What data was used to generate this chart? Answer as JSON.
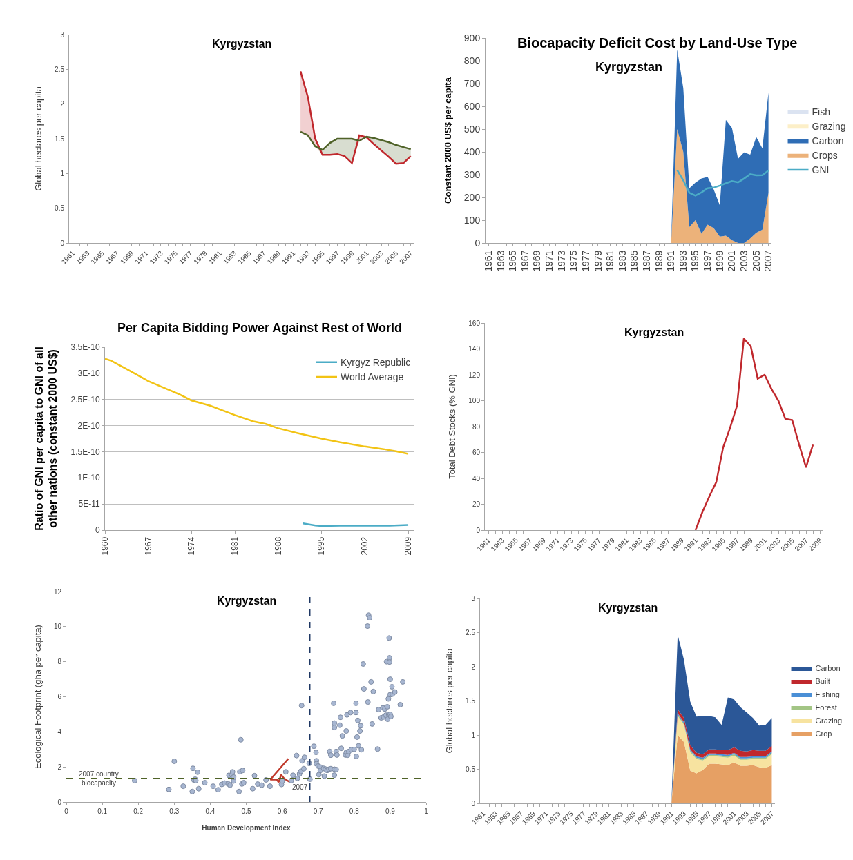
{
  "chart_data": [
    {
      "type": "line",
      "title": "Kyrgyzstan",
      "ylabel": "Global hectares per capita",
      "legend": false,
      "categories": [
        "1961",
        null,
        "1963",
        null,
        "1965",
        null,
        "1967",
        null,
        "1969",
        null,
        "1971",
        null,
        "1973",
        null,
        "1975",
        null,
        "1977",
        null,
        "1979",
        null,
        "1981",
        null,
        "1983",
        null,
        "1985",
        null,
        "1987",
        null,
        "1989",
        null,
        "1991",
        null,
        "1993",
        null,
        "1995",
        null,
        "1997",
        null,
        "1999",
        null,
        "2001",
        null,
        "2003",
        null,
        "2005",
        null,
        "2007"
      ],
      "ylim": [
        0,
        3
      ],
      "yticks": [
        0,
        0.5,
        1,
        1.5,
        2,
        2.5,
        3
      ],
      "series": [
        {
          "color": "#c0282d",
          "values": [
            null,
            null,
            null,
            null,
            null,
            null,
            null,
            null,
            null,
            null,
            null,
            null,
            null,
            null,
            null,
            null,
            null,
            null,
            null,
            null,
            null,
            null,
            null,
            null,
            null,
            null,
            null,
            null,
            null,
            null,
            null,
            2.47,
            2.1,
            1.5,
            1.27,
            1.27,
            1.28,
            1.25,
            1.15,
            1.55,
            1.52,
            1.42,
            1.33,
            1.24,
            1.14,
            1.15,
            1.25
          ],
          "lower": [
            null,
            null,
            null,
            null,
            null,
            null,
            null,
            null,
            null,
            null,
            null,
            null,
            null,
            null,
            null,
            null,
            null,
            null,
            null,
            null,
            null,
            null,
            null,
            null,
            null,
            null,
            null,
            null,
            null,
            null,
            null,
            1.6,
            1.55,
            1.39,
            1.27,
            1.27,
            1.28,
            1.25,
            1.15,
            1.47,
            1.52,
            1.42,
            1.33,
            1.24,
            1.14,
            1.15,
            1.25
          ],
          "upper": [
            null,
            null,
            null,
            null,
            null,
            null,
            null,
            null,
            null,
            null,
            null,
            null,
            null,
            null,
            null,
            null,
            null,
            null,
            null,
            null,
            null,
            null,
            null,
            null,
            null,
            null,
            null,
            null,
            null,
            null,
            null,
            2.47,
            2.1,
            1.5,
            1.27,
            1.27,
            1.28,
            1.25,
            1.15,
            1.55,
            1.52,
            1.42,
            1.33,
            1.24,
            1.14,
            1.15,
            1.25
          ]
        },
        {
          "color": "#4f6228",
          "values": [
            null,
            null,
            null,
            null,
            null,
            null,
            null,
            null,
            null,
            null,
            null,
            null,
            null,
            null,
            null,
            null,
            null,
            null,
            null,
            null,
            null,
            null,
            null,
            null,
            null,
            null,
            null,
            null,
            null,
            null,
            null,
            1.6,
            1.55,
            1.39,
            1.34,
            1.44,
            1.5,
            1.5,
            1.5,
            1.47,
            1.53,
            1.51,
            1.48,
            1.45,
            1.41,
            1.38,
            1.35
          ],
          "lower": [
            null,
            null,
            null,
            null,
            null,
            null,
            null,
            null,
            null,
            null,
            null,
            null,
            null,
            null,
            null,
            null,
            null,
            null,
            null,
            null,
            null,
            null,
            null,
            null,
            null,
            null,
            null,
            null,
            null,
            null,
            null,
            1.6,
            1.55,
            1.39,
            1.27,
            1.27,
            1.28,
            1.25,
            1.15,
            1.47,
            1.52,
            1.42,
            1.33,
            1.24,
            1.14,
            1.15,
            1.25
          ],
          "upper": [
            null,
            null,
            null,
            null,
            null,
            null,
            null,
            null,
            null,
            null,
            null,
            null,
            null,
            null,
            null,
            null,
            null,
            null,
            null,
            null,
            null,
            null,
            null,
            null,
            null,
            null,
            null,
            null,
            null,
            null,
            null,
            1.6,
            1.55,
            1.39,
            1.34,
            1.44,
            1.5,
            1.5,
            1.5,
            1.47,
            1.53,
            1.51,
            1.48,
            1.45,
            1.41,
            1.38,
            1.35
          ]
        }
      ]
    },
    {
      "type": "area",
      "stacked": true,
      "title": "Biocapacity Deficit Cost by Land-Use Type",
      "subtitle": "Kyrgyzstan",
      "ylabel": "Constant 2000 US$ per capita",
      "legend": "right",
      "categories": [
        "1961",
        null,
        "1963",
        null,
        "1965",
        null,
        "1967",
        null,
        "1969",
        null,
        "1971",
        null,
        "1973",
        null,
        "1975",
        null,
        "1977",
        null,
        "1979",
        null,
        "1981",
        null,
        "1983",
        null,
        "1985",
        null,
        "1987",
        null,
        "1989",
        null,
        "1991",
        null,
        "1993",
        null,
        "1995",
        null,
        "1997",
        null,
        "1999",
        null,
        "2001",
        null,
        "2003",
        null,
        "2005",
        null,
        "2007"
      ],
      "ylim": [
        0,
        900
      ],
      "yticks": [
        0,
        100,
        200,
        300,
        400,
        500,
        600,
        700,
        800,
        900
      ],
      "series": [
        {
          "name": "Crops",
          "color": "#ecb27a",
          "values": [
            null,
            null,
            null,
            null,
            null,
            null,
            null,
            null,
            null,
            null,
            null,
            null,
            null,
            null,
            null,
            null,
            null,
            null,
            null,
            null,
            null,
            null,
            null,
            null,
            null,
            null,
            null,
            null,
            null,
            null,
            0,
            500,
            400,
            70,
            100,
            40,
            80,
            65,
            28,
            32,
            12,
            0,
            0,
            20,
            45,
            58,
            220
          ]
        },
        {
          "name": "Carbon",
          "color": "#2f6db5",
          "values": [
            null,
            null,
            null,
            null,
            null,
            null,
            null,
            null,
            null,
            null,
            null,
            null,
            null,
            null,
            null,
            null,
            null,
            null,
            null,
            null,
            null,
            null,
            null,
            null,
            null,
            null,
            null,
            null,
            null,
            null,
            0,
            350,
            280,
            170,
            165,
            243,
            210,
            170,
            137,
            508,
            493,
            370,
            398,
            368,
            420,
            357,
            440
          ]
        },
        {
          "name": "Grazing",
          "color": "#fcefc8",
          "values": [
            null,
            null,
            null,
            null,
            null,
            null,
            null,
            null,
            null,
            null,
            null,
            null,
            null,
            null,
            null,
            null,
            null,
            null,
            null,
            null,
            null,
            null,
            null,
            null,
            null,
            null,
            null,
            null,
            null,
            null,
            null,
            null,
            null,
            null,
            null,
            null,
            null,
            null,
            null,
            null,
            null,
            null,
            null,
            null,
            null,
            null,
            null
          ]
        },
        {
          "name": "Fish",
          "color": "#dbe3f1",
          "values": [
            null,
            null,
            null,
            null,
            null,
            null,
            null,
            null,
            null,
            null,
            null,
            null,
            null,
            null,
            null,
            null,
            null,
            null,
            null,
            null,
            null,
            null,
            null,
            null,
            null,
            null,
            null,
            null,
            null,
            null,
            null,
            null,
            null,
            null,
            null,
            null,
            null,
            null,
            null,
            null,
            null,
            null,
            null,
            null,
            null,
            null,
            null
          ]
        },
        {
          "name": "GNI",
          "type": "line",
          "color": "#4bacc6",
          "values": [
            null,
            null,
            null,
            null,
            null,
            null,
            null,
            null,
            null,
            null,
            null,
            null,
            null,
            null,
            null,
            null,
            null,
            null,
            null,
            null,
            null,
            null,
            null,
            null,
            null,
            null,
            null,
            null,
            null,
            null,
            null,
            320,
            275,
            220,
            208,
            222,
            240,
            243,
            252,
            262,
            272,
            266,
            283,
            302,
            297,
            298,
            318
          ]
        }
      ]
    },
    {
      "type": "line",
      "title": "Per Capita Bidding Power Against Rest of World",
      "ylabel": "Ratio of GNI per capita to GNI of all other nations (constant 2000 US$)",
      "legend": "top right",
      "grid": "y",
      "xlim": [
        1960,
        2010
      ],
      "xticks": [
        1960,
        1967,
        1974,
        1981,
        1988,
        1995,
        2002,
        2009
      ],
      "ylim": [
        0,
        3.5e-10
      ],
      "yticks": [
        0,
        {
          "value": 5e-11,
          "label": "5E-11"
        },
        {
          "value": 1e-10,
          "label": "1E-10"
        },
        {
          "value": 1.5e-10,
          "label": "1.5E-10"
        },
        {
          "value": 2e-10,
          "label": "2E-10"
        },
        {
          "value": 2.5e-10,
          "label": "2.5E-10"
        },
        {
          "value": 3e-10,
          "label": "3E-10"
        },
        {
          "value": 3.5e-10,
          "label": "3.5E-10"
        }
      ],
      "series": [
        {
          "name": "Kyrgyz Republic",
          "color": "#4bacc6",
          "x": [
            1992,
            1994,
            1995,
            1998,
            2002,
            2004,
            2006,
            2009
          ],
          "values": [
            1.3e-11,
            9e-12,
            8e-12,
            8.5e-12,
            8.5e-12,
            9e-12,
            8.5e-12,
            1e-11
          ]
        },
        {
          "name": "World Average",
          "color": "#f2c314",
          "x": [
            1960,
            1961,
            1964,
            1967,
            1970,
            1972,
            1974,
            1977,
            1981,
            1984,
            1986,
            1988,
            1991,
            1995,
            1998,
            2002,
            2005,
            2007,
            2009
          ],
          "values": [
            3.28e-10,
            3.24e-10,
            3.05e-10,
            2.85e-10,
            2.7e-10,
            2.6e-10,
            2.48e-10,
            2.38e-10,
            2.2e-10,
            2.08e-10,
            2.03e-10,
            1.95e-10,
            1.86e-10,
            1.75e-10,
            1.68e-10,
            1.6e-10,
            1.55e-10,
            1.51e-10,
            1.46e-10
          ]
        }
      ]
    },
    {
      "type": "line",
      "title": "Kyrgyzstan",
      "ylabel": "Total Debt Stocks (% GNI)",
      "legend": false,
      "color": "#c0282d",
      "categories": [
        "1961",
        null,
        "1963",
        null,
        "1965",
        null,
        "1967",
        null,
        "1969",
        null,
        "1971",
        null,
        "1973",
        null,
        "1975",
        null,
        "1977",
        null,
        "1979",
        null,
        "1981",
        null,
        "1983",
        null,
        "1985",
        null,
        "1987",
        null,
        "1989",
        null,
        "1991",
        null,
        "1993",
        null,
        "1995",
        null,
        "1997",
        null,
        "1999",
        null,
        "2001",
        null,
        "2003",
        null,
        "2005",
        null,
        "2007",
        null,
        "2009"
      ],
      "ylim": [
        0,
        160
      ],
      "yticks": [
        0,
        20,
        40,
        60,
        80,
        100,
        120,
        140,
        160
      ],
      "values": [
        null,
        null,
        null,
        null,
        null,
        null,
        null,
        null,
        null,
        null,
        null,
        null,
        null,
        null,
        null,
        null,
        null,
        null,
        null,
        null,
        null,
        null,
        null,
        null,
        null,
        null,
        null,
        null,
        null,
        null,
        0,
        14,
        26,
        37,
        64,
        79,
        96,
        148,
        142,
        117,
        120,
        109,
        100,
        86,
        85,
        66,
        48.5,
        66,
        null
      ]
    },
    {
      "type": "scatter",
      "title": "Kyrgyzstan",
      "xlabel": "Human Development Index",
      "ylabel": "Ecological Footprint (gha per capita)",
      "legend": false,
      "marker": "circle",
      "xlim": [
        0,
        1
      ],
      "xticks": [
        0,
        0.1,
        0.2,
        0.3,
        0.4,
        0.5,
        0.6,
        0.7,
        0.8,
        0.9,
        1
      ],
      "ylim": [
        0,
        12
      ],
      "yticks": [
        0,
        2,
        4,
        6,
        8,
        10,
        12
      ],
      "series": [
        {
          "color": "#a7b6d1",
          "x": [
            0.19,
            0.285,
            0.3,
            0.325,
            0.35,
            0.352,
            0.355,
            0.358,
            0.36,
            0.365,
            0.368,
            0.385,
            0.408,
            0.422,
            0.432,
            0.44,
            0.45,
            0.452,
            0.455,
            0.46,
            0.462,
            0.465,
            0.465,
            0.48,
            0.482,
            0.485,
            0.488,
            0.49,
            0.493,
            0.518,
            0.523,
            0.532,
            0.543,
            0.555,
            0.566,
            0.598,
            0.6,
            0.61,
            0.625,
            0.63,
            0.64,
            0.642,
            0.648,
            0.652,
            0.654,
            0.655,
            0.66,
            0.662,
            0.675,
            0.677,
            0.688,
            0.694,
            0.695,
            0.695,
            0.7,
            0.702,
            0.705,
            0.706,
            0.715,
            0.717,
            0.72,
            0.725,
            0.73,
            0.732,
            0.735,
            0.735,
            0.743,
            0.745,
            0.745,
            0.745,
            0.745,
            0.75,
            0.75,
            0.752,
            0.76,
            0.762,
            0.764,
            0.767,
            0.776,
            0.778,
            0.778,
            0.78,
            0.782,
            0.785,
            0.79,
            0.792,
            0.8,
            0.805,
            0.805,
            0.806,
            0.808,
            0.81,
            0.812,
            0.816,
            0.818,
            0.82,
            0.825,
            0.827,
            0.837,
            0.838,
            0.84,
            0.843,
            0.847,
            0.85,
            0.853,
            0.865,
            0.868,
            0.875,
            0.88,
            0.882,
            0.885,
            0.888,
            0.89,
            0.892,
            0.893,
            0.895,
            0.896,
            0.897,
            0.898,
            0.898,
            0.9,
            0.9,
            0.9,
            0.902,
            0.905,
            0.906,
            0.913,
            0.928,
            0.935
          ],
          "values": [
            1.22,
            0.72,
            2.32,
            0.9,
            0.6,
            1.92,
            1.25,
            1.3,
            1.22,
            1.7,
            0.76,
            1.1,
            0.9,
            0.7,
            1.0,
            1.08,
            1.03,
            1.52,
            0.96,
            1.55,
            1.72,
            1.2,
            1.42,
            0.6,
            1.72,
            3.55,
            1.03,
            1.8,
            1.1,
            0.76,
            1.5,
            1.02,
            0.96,
            1.26,
            0.9,
            1.0,
            1.2,
            1.72,
            1.22,
            1.52,
            2.65,
            1.35,
            1.6,
            1.75,
            5.5,
            2.35,
            1.9,
            2.55,
            2.2,
            1.3,
            3.18,
            2.83,
            2.35,
            2.18,
            2.05,
            1.56,
            2.0,
            1.8,
            1.92,
            1.48,
            1.88,
            1.8,
            1.87,
            2.88,
            1.9,
            2.67,
            5.63,
            4.5,
            4.25,
            1.87,
            1.53,
            1.85,
            2.88,
            2.68,
            4.38,
            4.83,
            3.06,
            3.77,
            2.68,
            2.82,
            4.05,
            4.97,
            2.67,
            2.88,
            5.1,
            2.98,
            3.0,
            5.63,
            5.1,
            2.6,
            3.7,
            4.65,
            3.2,
            4.05,
            4.35,
            2.98,
            7.87,
            6.45,
            10.03,
            5.7,
            10.65,
            10.5,
            6.85,
            4.45,
            6.3,
            3.02,
            5.27,
            4.8,
            5.37,
            4.85,
            5.3,
            4.95,
            8.0,
            5.43,
            4.72,
            5.88,
            5.0,
            9.35,
            8.22,
            7.98,
            5.0,
            7.0,
            6.12,
            4.88,
            6.57,
            6.15,
            6.27,
            5.55,
            6.85
          ]
        },
        {
          "type": "line",
          "marker": "none",
          "color": "#c0392b",
          "x": [
            0.617,
            0.567,
            0.585,
            0.59,
            0.597,
            0.605,
            0.612,
            0.62
          ],
          "values": [
            2.47,
            1.28,
            1.28,
            1.13,
            1.55,
            1.35,
            1.25,
            1.15
          ]
        }
      ],
      "ref_lines": [
        {
          "axis": "y",
          "value": 1.35,
          "label": "2007 country biocapacity",
          "color": "#4f6228",
          "line_style": "dashed"
        },
        {
          "axis": "x",
          "value": 0.677,
          "color": "#1f3864",
          "line_style": "dashed"
        }
      ],
      "annotations": [
        {
          "text": "2007",
          "x": 0.62,
          "y": 1.15
        }
      ]
    },
    {
      "type": "area",
      "stacked": true,
      "title": "Kyrgyzstan",
      "ylabel": "Global hectares per capita",
      "legend": "right",
      "categories": [
        "1961",
        null,
        "1963",
        null,
        "1965",
        null,
        "1967",
        null,
        "1969",
        null,
        "1971",
        null,
        "1973",
        null,
        "1975",
        null,
        "1977",
        null,
        "1979",
        null,
        "1981",
        null,
        "1983",
        null,
        "1985",
        null,
        "1987",
        null,
        "1989",
        null,
        "1991",
        null,
        "1993",
        null,
        "1995",
        null,
        "1997",
        null,
        "1999",
        null,
        "2001",
        null,
        "2003",
        null,
        "2005",
        null,
        "2007"
      ],
      "ylim": [
        0,
        3
      ],
      "yticks": [
        0,
        0.5,
        1,
        1.5,
        2,
        2.5,
        3
      ],
      "series": [
        {
          "name": "Crop",
          "color": "#e6a064",
          "values": [
            null,
            null,
            null,
            null,
            null,
            null,
            null,
            null,
            null,
            null,
            null,
            null,
            null,
            null,
            null,
            null,
            null,
            null,
            null,
            null,
            null,
            null,
            null,
            null,
            null,
            null,
            null,
            null,
            null,
            null,
            0,
            1.0,
            0.9,
            0.48,
            0.44,
            0.49,
            0.58,
            0.58,
            0.57,
            0.56,
            0.6,
            0.55,
            0.55,
            0.56,
            0.53,
            0.52,
            0.56
          ]
        },
        {
          "name": "Grazing",
          "color": "#f7e3a0",
          "values": [
            null,
            null,
            null,
            null,
            null,
            null,
            null,
            null,
            null,
            null,
            null,
            null,
            null,
            null,
            null,
            null,
            null,
            null,
            null,
            null,
            null,
            null,
            null,
            null,
            null,
            null,
            null,
            null,
            null,
            null,
            0,
            0.28,
            0.25,
            0.27,
            0.21,
            0.14,
            0.11,
            0.11,
            0.11,
            0.11,
            0.1,
            0.09,
            0.09,
            0.09,
            0.12,
            0.13,
            0.16
          ]
        },
        {
          "name": "Forest",
          "color": "#a3c585",
          "values": [
            null,
            null,
            null,
            null,
            null,
            null,
            null,
            null,
            null,
            null,
            null,
            null,
            null,
            null,
            null,
            null,
            null,
            null,
            null,
            null,
            null,
            null,
            null,
            null,
            null,
            null,
            null,
            null,
            null,
            null,
            0,
            0.02,
            0.02,
            0.02,
            0.02,
            0.02,
            0.02,
            0.02,
            0.02,
            0.02,
            0.02,
            0.02,
            0.02,
            0.02,
            0.02,
            0.02,
            0.02
          ]
        },
        {
          "name": "Fishing",
          "color": "#4a8fd6",
          "values": [
            null,
            null,
            null,
            null,
            null,
            null,
            null,
            null,
            null,
            null,
            null,
            null,
            null,
            null,
            null,
            null,
            null,
            null,
            null,
            null,
            null,
            null,
            null,
            null,
            null,
            null,
            null,
            null,
            null,
            null,
            0,
            0.02,
            0.02,
            0.02,
            0.02,
            0.02,
            0.02,
            0.02,
            0.02,
            0.02,
            0.02,
            0.02,
            0.02,
            0.02,
            0.02,
            0.02,
            0.02
          ]
        },
        {
          "name": "Built",
          "color": "#c0282d",
          "values": [
            null,
            null,
            null,
            null,
            null,
            null,
            null,
            null,
            null,
            null,
            null,
            null,
            null,
            null,
            null,
            null,
            null,
            null,
            null,
            null,
            null,
            null,
            null,
            null,
            null,
            null,
            null,
            null,
            null,
            null,
            0,
            0.06,
            0.06,
            0.06,
            0.05,
            0.05,
            0.06,
            0.06,
            0.06,
            0.07,
            0.08,
            0.09,
            0.08,
            0.09,
            0.08,
            0.08,
            0.08
          ]
        },
        {
          "name": "Carbon",
          "color": "#2b5797",
          "values": [
            null,
            null,
            null,
            null,
            null,
            null,
            null,
            null,
            null,
            null,
            null,
            null,
            null,
            null,
            null,
            null,
            null,
            null,
            null,
            null,
            null,
            null,
            null,
            null,
            null,
            null,
            null,
            null,
            null,
            null,
            0,
            1.09,
            0.85,
            0.64,
            0.53,
            0.56,
            0.49,
            0.47,
            0.37,
            0.77,
            0.7,
            0.64,
            0.57,
            0.47,
            0.37,
            0.38,
            0.41
          ]
        }
      ]
    }
  ]
}
